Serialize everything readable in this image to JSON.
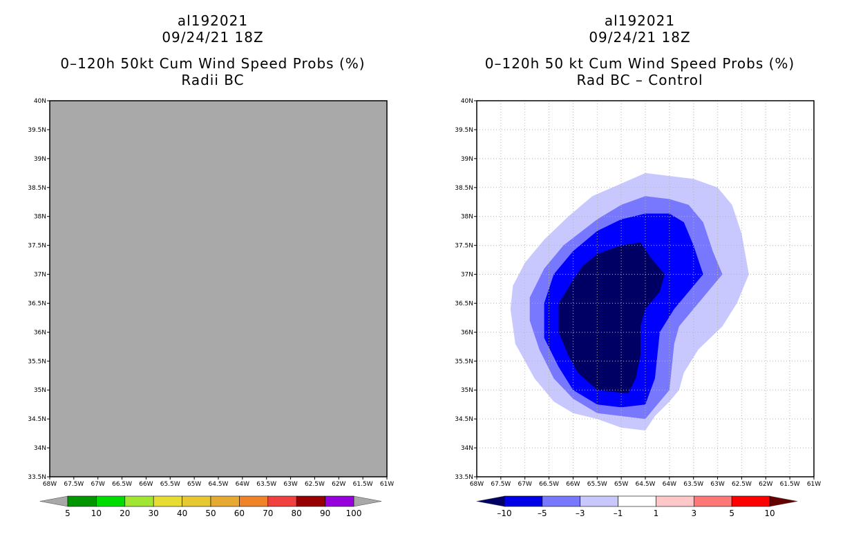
{
  "colors": {
    "panel_bg": "#a9a9a9",
    "grid": "#b4b4b4",
    "frame": "#000000"
  },
  "chart_data": [
    {
      "type": "contour-map",
      "title_lines": [
        "al192021",
        "09/24/21 18Z",
        "0–120h 50kt Cum Wind Speed Probs (%)",
        "Radii BC"
      ],
      "xlabel": "",
      "ylabel": "",
      "x_ticks": [
        "68W",
        "67.5W",
        "67W",
        "66.5W",
        "66W",
        "65.5W",
        "65W",
        "64.5W",
        "64W",
        "63.5W",
        "63W",
        "62.5W",
        "62W",
        "61.5W",
        "61W"
      ],
      "y_ticks": [
        "33.5N",
        "34N",
        "34.5N",
        "35N",
        "35.5N",
        "36N",
        "36.5N",
        "37N",
        "37.5N",
        "38N",
        "38.5N",
        "39N",
        "39.5N",
        "40N"
      ],
      "xlim": [
        -68,
        -61
      ],
      "ylim": [
        33.5,
        40
      ],
      "field": "uniform undefined (gray)",
      "colorbar": {
        "labels": [
          "5",
          "10",
          "20",
          "30",
          "40",
          "50",
          "60",
          "70",
          "80",
          "90",
          "100"
        ],
        "colors": [
          "#009600",
          "#00dc00",
          "#a0e632",
          "#e6dc32",
          "#e6c832",
          "#e6aa32",
          "#f08228",
          "#f04040",
          "#960000",
          "#9600dc"
        ],
        "end_colors": [
          "#a8a8a8",
          "#a8a8a8"
        ]
      }
    },
    {
      "type": "contour-map",
      "title_lines": [
        "al192021",
        "09/24/21 18Z",
        "0–120h 50 kt Cum Wind Speed Probs (%)",
        "Rad BC – Control"
      ],
      "xlabel": "",
      "ylabel": "",
      "x_ticks": [
        "68W",
        "67.5W",
        "67W",
        "66.5W",
        "66W",
        "65.5W",
        "65W",
        "64.5W",
        "64W",
        "63.5W",
        "63W",
        "62.5W",
        "62W",
        "61.5W",
        "61W"
      ],
      "y_ticks": [
        "33.5N",
        "34N",
        "34.5N",
        "35N",
        "35.5N",
        "36N",
        "36.5N",
        "37N",
        "37.5N",
        "38N",
        "38.5N",
        "39N",
        "39.5N",
        "40N"
      ],
      "xlim": [
        -68,
        -61
      ],
      "ylim": [
        33.5,
        40
      ],
      "grid": true,
      "contours": [
        {
          "level": "-1 to -3",
          "color": "#c8c8ff",
          "points": [
            [
              -65.6,
              38.35
            ],
            [
              -64.5,
              38.75
            ],
            [
              -63.5,
              38.65
            ],
            [
              -63.0,
              38.5
            ],
            [
              -62.7,
              38.2
            ],
            [
              -62.5,
              37.7
            ],
            [
              -62.35,
              37.0
            ],
            [
              -62.6,
              36.5
            ],
            [
              -62.9,
              36.1
            ],
            [
              -63.4,
              35.7
            ],
            [
              -63.7,
              35.3
            ],
            [
              -63.8,
              35.0
            ],
            [
              -64.0,
              34.8
            ],
            [
              -64.3,
              34.55
            ],
            [
              -64.5,
              34.3
            ],
            [
              -65.0,
              34.35
            ],
            [
              -65.5,
              34.5
            ],
            [
              -66.0,
              34.6
            ],
            [
              -66.4,
              34.8
            ],
            [
              -66.8,
              35.2
            ],
            [
              -67.0,
              35.5
            ],
            [
              -67.2,
              35.8
            ],
            [
              -67.3,
              36.4
            ],
            [
              -67.25,
              36.8
            ],
            [
              -67.0,
              37.2
            ],
            [
              -66.6,
              37.6
            ],
            [
              -66.1,
              38.0
            ]
          ]
        },
        {
          "level": "-3 to -5",
          "color": "#7878ff",
          "points": [
            [
              -65.5,
              37.95
            ],
            [
              -65.0,
              38.2
            ],
            [
              -64.5,
              38.35
            ],
            [
              -64.0,
              38.3
            ],
            [
              -63.6,
              38.2
            ],
            [
              -63.3,
              37.9
            ],
            [
              -63.1,
              37.4
            ],
            [
              -62.9,
              37.0
            ],
            [
              -63.1,
              36.8
            ],
            [
              -63.5,
              36.4
            ],
            [
              -63.8,
              36.1
            ],
            [
              -63.9,
              35.8
            ],
            [
              -63.95,
              35.4
            ],
            [
              -64.0,
              35.0
            ],
            [
              -64.3,
              34.7
            ],
            [
              -64.5,
              34.5
            ],
            [
              -65.0,
              34.55
            ],
            [
              -65.5,
              34.6
            ],
            [
              -66.0,
              34.85
            ],
            [
              -66.4,
              35.2
            ],
            [
              -66.7,
              35.7
            ],
            [
              -66.9,
              36.2
            ],
            [
              -66.9,
              36.6
            ],
            [
              -66.6,
              37.1
            ],
            [
              -66.2,
              37.5
            ]
          ]
        },
        {
          "level": "-5 to -10",
          "color": "#0000ff",
          "points": [
            [
              -65.5,
              37.75
            ],
            [
              -65.0,
              37.95
            ],
            [
              -64.5,
              38.05
            ],
            [
              -64.0,
              38.05
            ],
            [
              -63.7,
              37.9
            ],
            [
              -63.5,
              37.5
            ],
            [
              -63.3,
              37.0
            ],
            [
              -63.6,
              36.7
            ],
            [
              -63.9,
              36.4
            ],
            [
              -64.2,
              36.0
            ],
            [
              -64.25,
              35.6
            ],
            [
              -64.3,
              35.2
            ],
            [
              -64.5,
              34.75
            ],
            [
              -65.0,
              34.7
            ],
            [
              -65.5,
              34.75
            ],
            [
              -66.0,
              35.0
            ],
            [
              -66.3,
              35.4
            ],
            [
              -66.6,
              35.9
            ],
            [
              -66.6,
              36.5
            ],
            [
              -66.4,
              37.0
            ],
            [
              -66.0,
              37.4
            ]
          ]
        },
        {
          "level": "< -10",
          "color": "#000064",
          "points": [
            [
              -65.5,
              37.35
            ],
            [
              -65.0,
              37.5
            ],
            [
              -64.6,
              37.55
            ],
            [
              -64.4,
              37.3
            ],
            [
              -64.1,
              37.0
            ],
            [
              -64.2,
              36.7
            ],
            [
              -64.5,
              36.4
            ],
            [
              -64.6,
              36.1
            ],
            [
              -64.6,
              35.6
            ],
            [
              -64.7,
              35.2
            ],
            [
              -64.85,
              34.95
            ],
            [
              -65.0,
              34.95
            ],
            [
              -65.5,
              35.0
            ],
            [
              -65.9,
              35.3
            ],
            [
              -66.1,
              35.6
            ],
            [
              -66.3,
              36.0
            ],
            [
              -66.3,
              36.5
            ],
            [
              -66.0,
              36.9
            ],
            [
              -65.8,
              37.15
            ]
          ]
        }
      ],
      "colorbar": {
        "labels": [
          "–10",
          "–5",
          "–3",
          "–1",
          "1",
          "3",
          "5",
          "10"
        ],
        "colors": [
          "#0000e6",
          "#7878ff",
          "#c8c8ff",
          "#ffffff",
          "#ffc8c8",
          "#ff7878",
          "#ff0000"
        ],
        "end_colors": [
          "#000064",
          "#640000"
        ]
      }
    }
  ]
}
